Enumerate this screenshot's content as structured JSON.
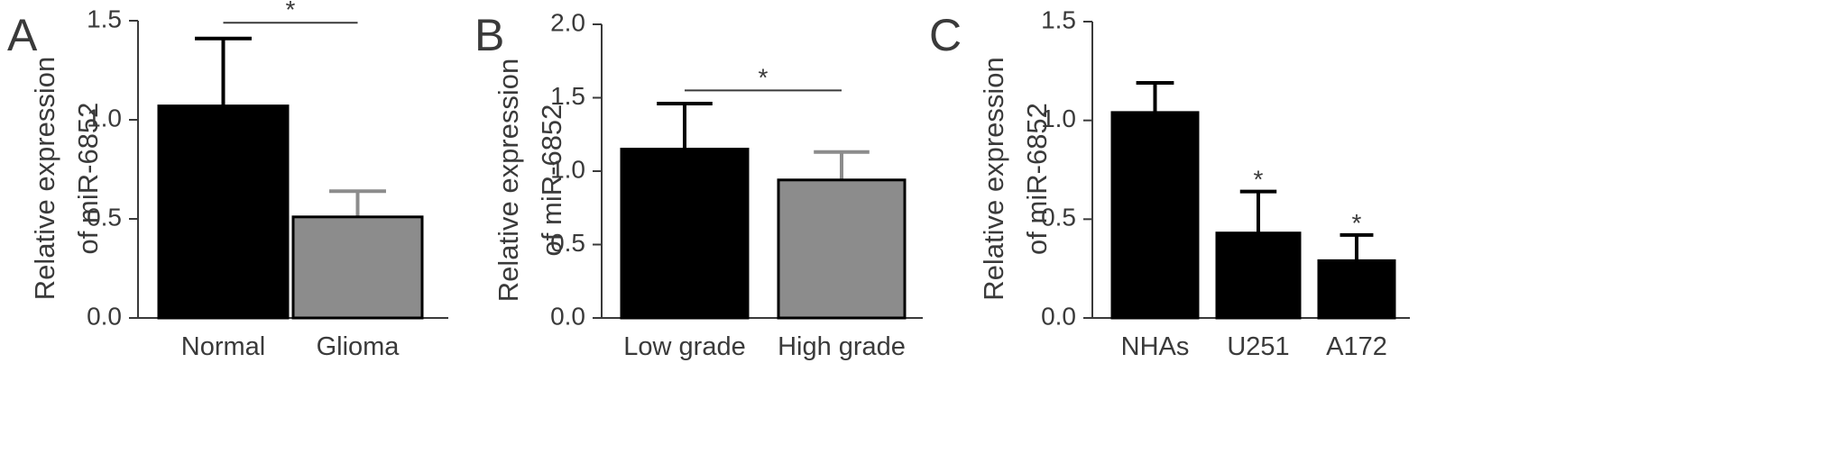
{
  "chart_data": [
    {
      "type": "bar",
      "panel": "A",
      "ylabel": [
        "Relative expression",
        "of miR-6852"
      ],
      "ylim": [
        0,
        1.5
      ],
      "yticks": [
        "0.0",
        "0.5",
        "1.0",
        "1.5"
      ],
      "categories": [
        "Normal",
        "Glioma"
      ],
      "values": [
        1.07,
        0.51
      ],
      "errors": [
        0.34,
        0.13
      ],
      "colors": [
        "#000000",
        "#8c8c8c"
      ],
      "significance": [
        {
          "from": 0,
          "to": 1,
          "label": "*",
          "y": 1.49
        }
      ],
      "bar_stars": []
    },
    {
      "type": "bar",
      "panel": "B",
      "ylabel": [
        "Relative expression",
        "of miR-6852"
      ],
      "ylim": [
        0,
        2.0
      ],
      "yticks": [
        "0.0",
        "0.5",
        "1.0",
        "1.5",
        "2.0"
      ],
      "categories": [
        "Low grade",
        "High grade"
      ],
      "values": [
        1.15,
        0.94
      ],
      "errors": [
        0.31,
        0.19
      ],
      "colors": [
        "#000000",
        "#8c8c8c"
      ],
      "significance": [
        {
          "from": 0,
          "to": 1,
          "label": "*",
          "y": 1.55
        }
      ],
      "bar_stars": []
    },
    {
      "type": "bar",
      "panel": "C",
      "ylabel": [
        "Relative expression",
        "of miR-6852"
      ],
      "ylim": [
        0,
        1.5
      ],
      "yticks": [
        "0.0",
        "0.5",
        "1.0",
        "1.5"
      ],
      "categories": [
        "NHAs",
        "U251",
        "A172"
      ],
      "values": [
        1.04,
        0.43,
        0.29
      ],
      "errors": [
        0.15,
        0.21,
        0.13
      ],
      "colors": [
        "#000000",
        "#000000",
        "#000000"
      ],
      "significance": [],
      "bar_stars": [
        "",
        "*",
        "*"
      ]
    }
  ]
}
